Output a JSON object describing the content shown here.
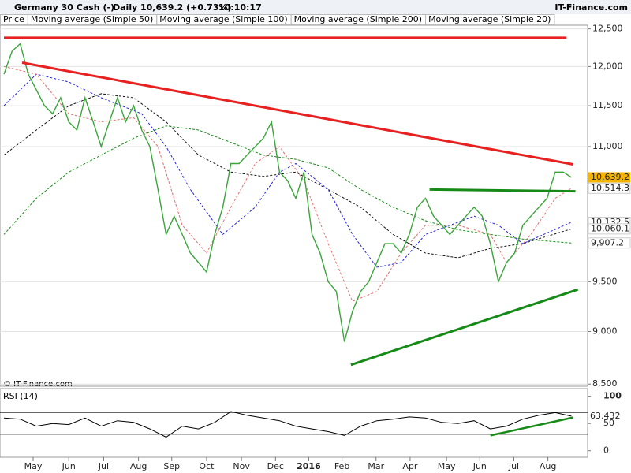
{
  "header": {
    "instrument": "Germany 30 Cash (-)",
    "period": "Daily",
    "quote": "10,639.2 (+0.73%)",
    "time": "10:10:17",
    "brand": "IT-Finance.com",
    "copyright": "© IT-Finance.com"
  },
  "chart_data": [
    {
      "type": "line",
      "log_scale": true,
      "grid": true,
      "xlim": [
        0,
        72
      ],
      "ylim": [
        8480,
        12550
      ],
      "xticks": [
        {
          "value": 3.6,
          "label": "May"
        },
        {
          "value": 8.0,
          "label": "Jun"
        },
        {
          "value": 12.3,
          "label": "Jul"
        },
        {
          "value": 16.6,
          "label": "Aug"
        },
        {
          "value": 20.7,
          "label": "Sep"
        },
        {
          "value": 25.0,
          "label": "Oct"
        },
        {
          "value": 29.3,
          "label": "Nov"
        },
        {
          "value": 33.5,
          "label": "Dec"
        },
        {
          "value": 37.6,
          "label": "2016"
        },
        {
          "value": 41.7,
          "label": "Feb"
        },
        {
          "value": 45.9,
          "label": "Mar"
        },
        {
          "value": 50.1,
          "label": "Apr"
        },
        {
          "value": 54.6,
          "label": "May"
        },
        {
          "value": 58.7,
          "label": "Jun"
        },
        {
          "value": 62.9,
          "label": "Jul"
        },
        {
          "value": 67.1,
          "label": "Aug"
        }
      ],
      "yticks": [
        {
          "value": 12500,
          "label": "12,500"
        },
        {
          "value": 12000,
          "label": "12,000"
        },
        {
          "value": 11500,
          "label": "11,500"
        },
        {
          "value": 11000,
          "label": "11,000"
        },
        {
          "value": 9500,
          "label": "9,500"
        },
        {
          "value": 9000,
          "label": "9,000"
        },
        {
          "value": 8500,
          "label": "8,500"
        }
      ],
      "series": [
        {
          "name": "Price",
          "color": "#3aa53a",
          "tag_color": "#f5b400",
          "last_value_label": "10,639.2",
          "x": [
            0,
            1,
            2,
            3,
            4,
            5,
            6,
            7,
            8,
            9,
            10,
            11,
            12,
            13,
            14,
            15,
            16,
            17,
            18,
            19,
            20,
            21,
            22,
            23,
            24,
            25,
            26,
            27,
            28,
            29,
            30,
            31,
            32,
            33,
            34,
            35,
            36,
            37,
            38,
            39,
            40,
            41,
            42,
            43,
            44,
            45,
            46,
            47,
            48,
            49,
            50,
            51,
            52,
            53,
            54,
            55,
            56,
            57,
            58,
            59,
            60,
            61,
            62,
            63,
            64,
            65,
            66,
            67,
            68,
            69,
            70
          ],
          "values": [
            11900,
            12200,
            12300,
            11900,
            11700,
            11500,
            11400,
            11600,
            11300,
            11200,
            11600,
            11300,
            11000,
            11300,
            11600,
            11300,
            11500,
            11200,
            11000,
            10500,
            10000,
            10200,
            10000,
            9800,
            9700,
            9600,
            10000,
            10300,
            10800,
            10800,
            10900,
            11000,
            11100,
            11300,
            10700,
            10600,
            10400,
            10700,
            10000,
            9800,
            9500,
            9400,
            8900,
            9200,
            9400,
            9500,
            9700,
            9900,
            9900,
            9800,
            10000,
            10300,
            10400,
            10200,
            10100,
            10000,
            10100,
            10200,
            10300,
            10200,
            9900,
            9500,
            9700,
            9800,
            10100,
            10200,
            10300,
            10400,
            10700,
            10700,
            10639.2
          ]
        },
        {
          "name": "Moving average (Simple 50)",
          "color": "#2424d8",
          "dash": true,
          "last_value_label": "10,132.5",
          "x": [
            0,
            4,
            8,
            12,
            17,
            20,
            23,
            27,
            31,
            34,
            36,
            40,
            43,
            46,
            49,
            52,
            58,
            61,
            64,
            70
          ],
          "values": [
            11500,
            11900,
            11800,
            11600,
            11400,
            11000,
            10500,
            10000,
            10300,
            10700,
            10800,
            10500,
            10000,
            9650,
            9700,
            10000,
            10200,
            10100,
            9900,
            10132.5
          ]
        },
        {
          "name": "Moving average (Simple 100)",
          "color": "#111111",
          "dash": true,
          "last_value_label": "10,060.1",
          "x": [
            0,
            4,
            8,
            12,
            16,
            20,
            24,
            28,
            32,
            36,
            40,
            44,
            48,
            52,
            56,
            60,
            64,
            70
          ],
          "values": [
            10900,
            11200,
            11500,
            11650,
            11600,
            11300,
            10900,
            10700,
            10650,
            10700,
            10500,
            10300,
            10000,
            9800,
            9750,
            9850,
            9900,
            10060.1
          ]
        },
        {
          "name": "Moving average (Simple 200)",
          "color": "#1a8a1a",
          "dash": true,
          "last_value_label": "9,907.2",
          "x": [
            0,
            4,
            8,
            12,
            16,
            20,
            24,
            28,
            32,
            36,
            40,
            44,
            48,
            52,
            56,
            60,
            64,
            70
          ],
          "values": [
            10000,
            10400,
            10700,
            10900,
            11100,
            11250,
            11200,
            11050,
            10900,
            10850,
            10750,
            10500,
            10300,
            10150,
            10050,
            10000,
            9950,
            9907.2
          ]
        },
        {
          "name": "Moving average (Simple 20)",
          "color": "#e07070",
          "dash": true,
          "last_value_label": "10,514.3",
          "x": [
            0,
            4,
            8,
            12,
            16,
            19,
            22,
            25,
            28,
            31,
            34,
            37,
            40,
            43,
            46,
            49,
            52,
            56,
            60,
            62,
            65,
            68,
            70
          ],
          "values": [
            12000,
            11900,
            11400,
            11300,
            11350,
            11000,
            10100,
            9800,
            10300,
            10800,
            11000,
            10600,
            9900,
            9300,
            9400,
            9800,
            10100,
            10100,
            10000,
            9700,
            10000,
            10400,
            10514.3
          ]
        }
      ],
      "trendlines": [
        {
          "color": "#e82020",
          "x": [
            0,
            69.4
          ],
          "y": [
            12380,
            12380
          ]
        },
        {
          "color": "#e82020",
          "x": [
            2.24,
            70.2
          ],
          "y": [
            12050,
            10790
          ]
        },
        {
          "color": "#168a16",
          "x": [
            52.5,
            70.5
          ],
          "y": [
            10500,
            10480
          ]
        },
        {
          "color": "#168a16",
          "x": [
            42.8,
            70.8
          ],
          "y": [
            8680,
            9420
          ]
        }
      ]
    },
    {
      "type": "line",
      "title": "RSI (14)",
      "xlim": [
        0,
        72
      ],
      "ylim": [
        -12,
        114
      ],
      "yticks": [
        100,
        50,
        0
      ],
      "levels": [
        70,
        30
      ],
      "series": [
        {
          "name": "RSI (14)",
          "color": "#000000",
          "last_value_label": "63.432",
          "x": [
            0,
            2,
            4,
            6,
            8,
            10,
            12,
            14,
            16,
            18,
            20,
            22,
            24,
            26,
            28,
            30,
            32,
            34,
            36,
            38,
            40,
            42,
            44,
            46,
            48,
            50,
            52,
            54,
            56,
            58,
            60,
            62,
            64,
            66,
            68,
            70
          ],
          "values": [
            60,
            58,
            45,
            50,
            48,
            60,
            45,
            55,
            52,
            40,
            25,
            45,
            40,
            52,
            72,
            65,
            60,
            55,
            45,
            40,
            35,
            28,
            45,
            55,
            58,
            62,
            60,
            52,
            50,
            55,
            40,
            45,
            58,
            65,
            70,
            63.432
          ]
        }
      ],
      "trendlines": [
        {
          "color": "#168a16",
          "x": [
            60,
            70.2
          ],
          "y": [
            28,
            61
          ]
        }
      ]
    }
  ]
}
